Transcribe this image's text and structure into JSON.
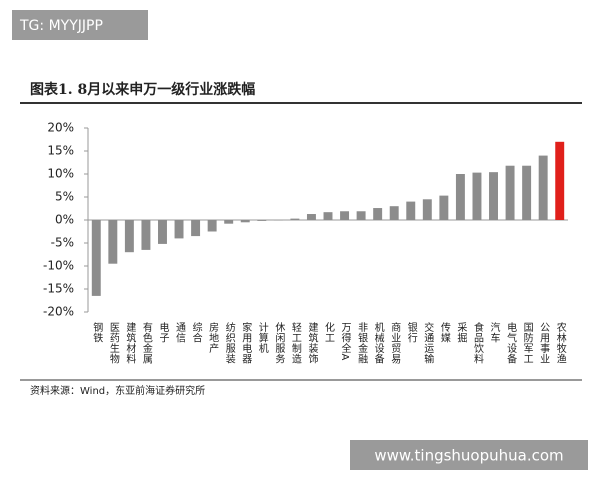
{
  "watermark_top": "TG: MYYJJPP",
  "watermark_bottom": "www.tingshuopuhua.com",
  "chart_data": {
    "type": "bar",
    "title": "图表1.   8月以来申万一级行业涨跌幅",
    "source": "资料来源：Wind，东亚前海证券研究所",
    "categories": [
      "钢铁",
      "医药生物",
      "建筑材料",
      "有色金属",
      "电子",
      "通信",
      "综合",
      "房地产",
      "纺织服装",
      "家用电器",
      "计算机",
      "休闲服务",
      "轻工制造",
      "建筑装饰",
      "化工",
      "万得全A",
      "非银金融",
      "机械设备",
      "商业贸易",
      "银行",
      "交通运输",
      "传媒",
      "采掘",
      "食品饮料",
      "汽车",
      "电气设备",
      "国防军工",
      "公用事业",
      "农林牧渔"
    ],
    "values": [
      -16.5,
      -9.5,
      -7,
      -6.5,
      -5.2,
      -4,
      -3.5,
      -2.5,
      -0.8,
      -0.5,
      -0.2,
      -0.1,
      0.3,
      1.3,
      1.7,
      1.9,
      1.9,
      2.6,
      3,
      4,
      4.5,
      5.3,
      10,
      10.3,
      10.4,
      11.8,
      11.8,
      14,
      17
    ],
    "colors": [
      "#8c8c8c",
      "#8c8c8c",
      "#8c8c8c",
      "#8c8c8c",
      "#8c8c8c",
      "#8c8c8c",
      "#8c8c8c",
      "#8c8c8c",
      "#8c8c8c",
      "#8c8c8c",
      "#8c8c8c",
      "#8c8c8c",
      "#8c8c8c",
      "#8c8c8c",
      "#8c8c8c",
      "#8c8c8c",
      "#8c8c8c",
      "#8c8c8c",
      "#8c8c8c",
      "#8c8c8c",
      "#8c8c8c",
      "#8c8c8c",
      "#8c8c8c",
      "#8c8c8c",
      "#8c8c8c",
      "#8c8c8c",
      "#8c8c8c",
      "#8c8c8c",
      "#e0201b"
    ],
    "ylim": [
      -20,
      20
    ],
    "yticks": [
      {
        "value": -20,
        "label": "-20%"
      },
      {
        "value": -15,
        "label": "-15%"
      },
      {
        "value": -10,
        "label": "-10%"
      },
      {
        "value": -5,
        "label": "-5%"
      },
      {
        "value": 0,
        "label": "0%"
      },
      {
        "value": 5,
        "label": "5%"
      },
      {
        "value": 10,
        "label": "10%"
      },
      {
        "value": 15,
        "label": "15%"
      },
      {
        "value": 20,
        "label": "20%"
      }
    ],
    "grid": false
  }
}
